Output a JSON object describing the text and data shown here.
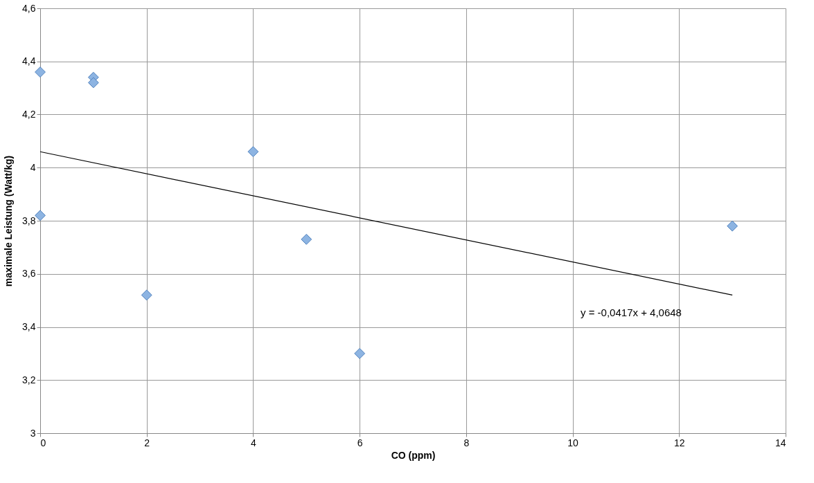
{
  "chart_data": {
    "type": "scatter",
    "xlabel": "CO (ppm)",
    "ylabel": "maximale Leistung (Watt/kg)",
    "x": [
      0,
      0,
      1,
      1,
      2,
      4,
      5,
      6,
      13
    ],
    "series": [
      {
        "color": "#8db4e2",
        "values": [
          4.36,
          3.82,
          4.34,
          4.32,
          3.52,
          4.06,
          3.73,
          3.3,
          3.78
        ]
      },
      {
        "type": "line",
        "color": "#000000",
        "marker": "none",
        "x": [
          0,
          13
        ],
        "values": [
          4.06,
          3.52
        ]
      }
    ],
    "marker": "diamond",
    "grid": true,
    "xlim": [
      0,
      14
    ],
    "xticks": [
      0,
      2,
      4,
      6,
      8,
      10,
      12,
      14
    ],
    "ylim": [
      3,
      4.6
    ],
    "yticks": [
      3,
      {
        "value": 3.2,
        "label": "3,2"
      },
      {
        "value": 3.4,
        "label": "3,4"
      },
      {
        "value": 3.6,
        "label": "3,6"
      },
      {
        "value": 3.8,
        "label": "3,8"
      },
      4,
      {
        "value": 4.2,
        "label": "4,2"
      },
      {
        "value": 4.4,
        "label": "4,4"
      },
      {
        "value": 4.6,
        "label": "4,6"
      }
    ],
    "annotations": [
      "y = -0,0417x + 4,0648"
    ]
  }
}
